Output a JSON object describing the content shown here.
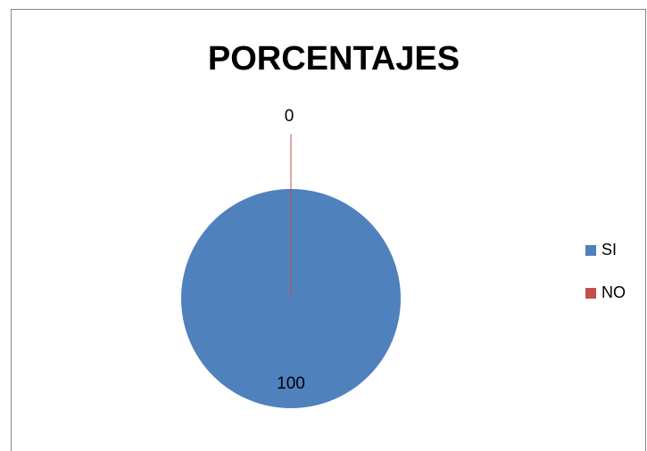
{
  "chart_data": {
    "type": "pie",
    "title": "PORCENTAJES",
    "categories": [
      "SI",
      "NO"
    ],
    "values": [
      100,
      0
    ],
    "colors": [
      "#4f81bd",
      "#c0504d"
    ],
    "legend": "right"
  }
}
